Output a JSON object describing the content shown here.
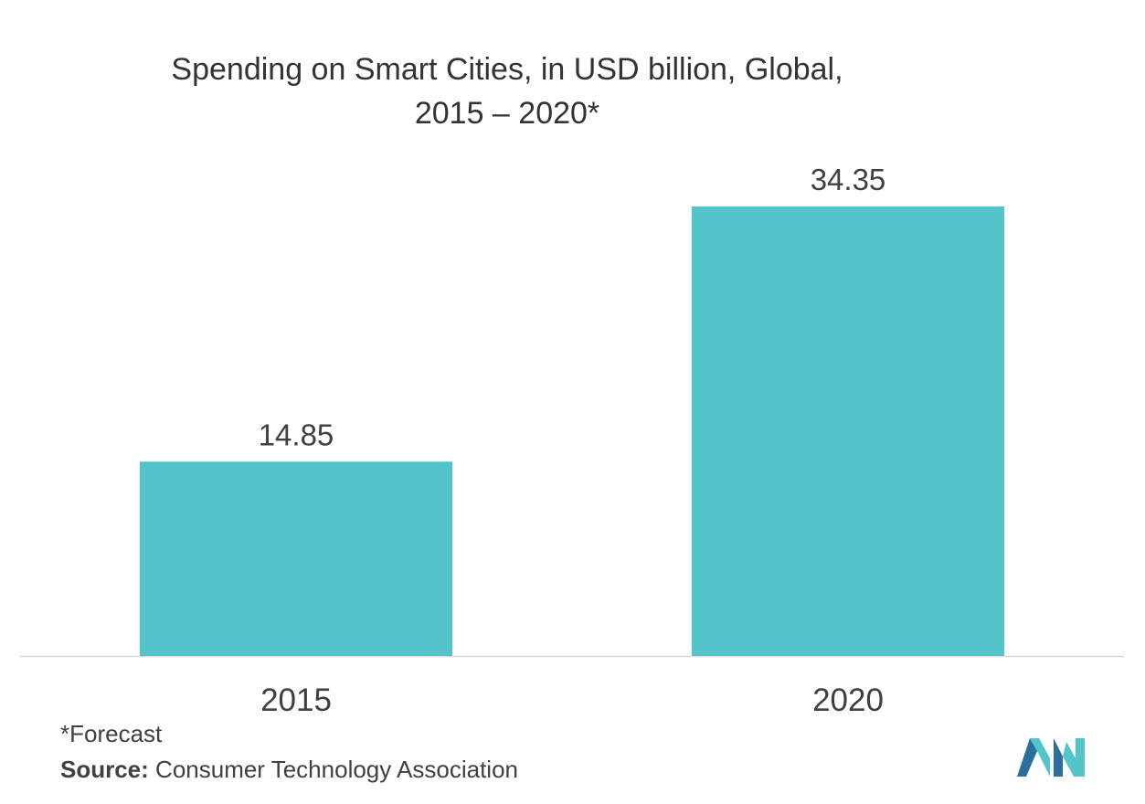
{
  "chart_data": {
    "type": "bar",
    "title_line1": "Spending on Smart Cities, in USD billion, Global,",
    "title_line2": "2015 – 2020*",
    "categories": [
      "2015",
      "2020"
    ],
    "values": [
      14.85,
      34.35
    ],
    "value_labels": [
      "14.85",
      "34.35"
    ],
    "xlabel": "",
    "ylabel": "",
    "ylim": [
      0,
      40
    ],
    "grid": false,
    "bar_color": "#52c4ca"
  },
  "footnote": "*Forecast",
  "source": {
    "label": "Source:",
    "text": " Consumer Technology Association"
  },
  "colors": {
    "bar": "#52c4ca",
    "logo_dark": "#2a6f9e",
    "logo_light": "#52c4ca"
  },
  "logo": {
    "icon": "mordor-intelligence-logo"
  }
}
